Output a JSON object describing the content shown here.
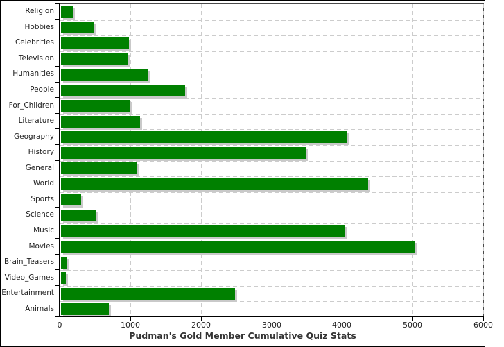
{
  "title": "Pudman's Gold Member Cumulative Quiz Stats",
  "chart_data": {
    "type": "bar",
    "orientation": "horizontal",
    "title": "Pudman's Gold Member Cumulative Quiz Stats",
    "categories": [
      "Religion",
      "Hobbies",
      "Celebrities",
      "Television",
      "Humanities",
      "People",
      "For_Children",
      "Literature",
      "Geography",
      "History",
      "General",
      "World",
      "Sports",
      "Science",
      "Music",
      "Movies",
      "Brain_Teasers",
      "Video_Games",
      "Entertainment",
      "Animals"
    ],
    "values": [
      165,
      460,
      965,
      940,
      1230,
      1760,
      985,
      1120,
      4050,
      3470,
      1070,
      4350,
      280,
      490,
      4030,
      5010,
      80,
      70,
      2460,
      680
    ],
    "xlabel": "",
    "ylabel": "",
    "xlim": [
      0,
      6000
    ],
    "xticks": [
      0,
      1000,
      2000,
      3000,
      4000,
      5000,
      6000
    ],
    "grid": "dashed horizontal and vertical",
    "legend": "none",
    "bar_color": "#008000",
    "shadow_color": "#c9c9c9",
    "gridline_color": "#cccccc",
    "background_color": "#ffffff"
  }
}
